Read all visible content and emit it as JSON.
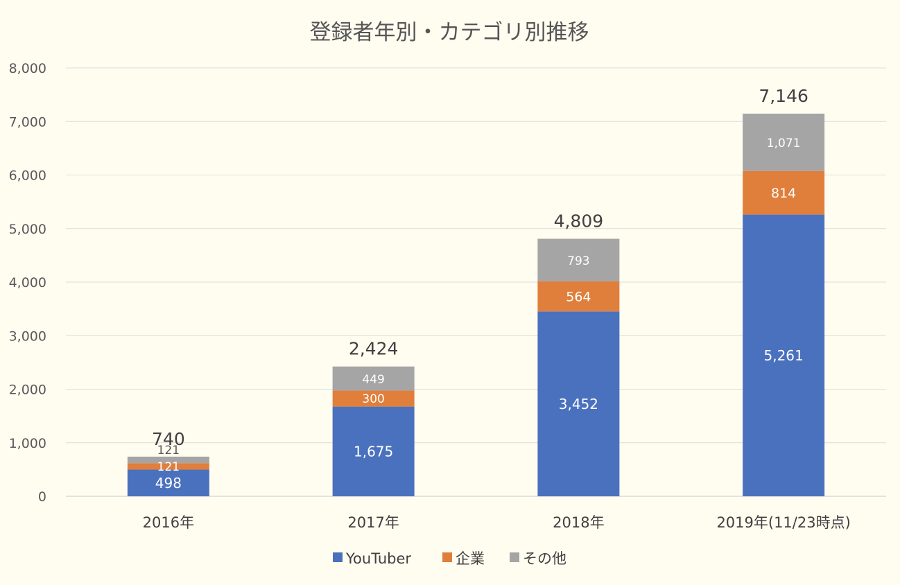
{
  "chart_data": {
    "type": "bar",
    "stacked": true,
    "title": "登録者年別・カテゴリ別推移",
    "categories": [
      "2016年",
      "2017年",
      "2018年",
      "2019年(11/23時点)"
    ],
    "series": [
      {
        "name": "YouTuber",
        "color": "#4a71be",
        "values": [
          498,
          1675,
          3452,
          5261
        ],
        "labels": [
          "498",
          "1,675",
          "3,452",
          "5,261"
        ]
      },
      {
        "name": "企業",
        "color": "#e07f3b",
        "values": [
          121,
          300,
          564,
          814
        ],
        "labels": [
          "121",
          "300",
          "564",
          "814"
        ]
      },
      {
        "name": "その他",
        "color": "#a5a5a5",
        "values": [
          121,
          449,
          793,
          1071
        ],
        "labels": [
          "121",
          "449",
          "793",
          "1,071"
        ]
      }
    ],
    "totals": [
      "740",
      "2,424",
      "4,809",
      "7,146"
    ],
    "yticks": [
      "0",
      "1,000",
      "2,000",
      "3,000",
      "4,000",
      "5,000",
      "6,000",
      "7,000",
      "8,000"
    ],
    "ylim": [
      0,
      8000
    ],
    "grid": true,
    "legend_position": "bottom"
  }
}
